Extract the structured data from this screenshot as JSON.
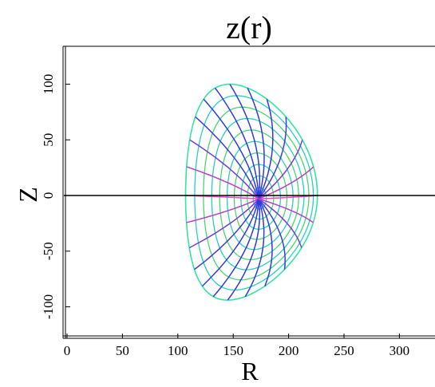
{
  "chart_data": {
    "type": "line",
    "title": "z(r)",
    "xlabel": "R",
    "ylabel": "Z",
    "xlim": [
      -4,
      330
    ],
    "ylim": [
      -128,
      134
    ],
    "x_ticks": [
      "0",
      "50",
      "100",
      "150",
      "200",
      "250",
      "300"
    ],
    "y_ticks": [
      "-100",
      "-50",
      "0",
      "50",
      "100"
    ],
    "zero_line": true,
    "magnetic_axis": [
      173,
      -3
    ],
    "boundary": {
      "r_left": 107,
      "r_right": 226,
      "z_top": 100,
      "z_bottom": -94,
      "r_at_top": 147,
      "r_at_bottom": 145
    },
    "flux_surface_count": 10,
    "ray_count": 24,
    "colors": {
      "outer_surface": "#33e6a0",
      "mid_surface": "#4ad66e",
      "inner_surface": "#22d0c8",
      "ray_start": "#ff40c0",
      "ray_end": "#2f3ae0",
      "axis_line": "#000000"
    }
  }
}
